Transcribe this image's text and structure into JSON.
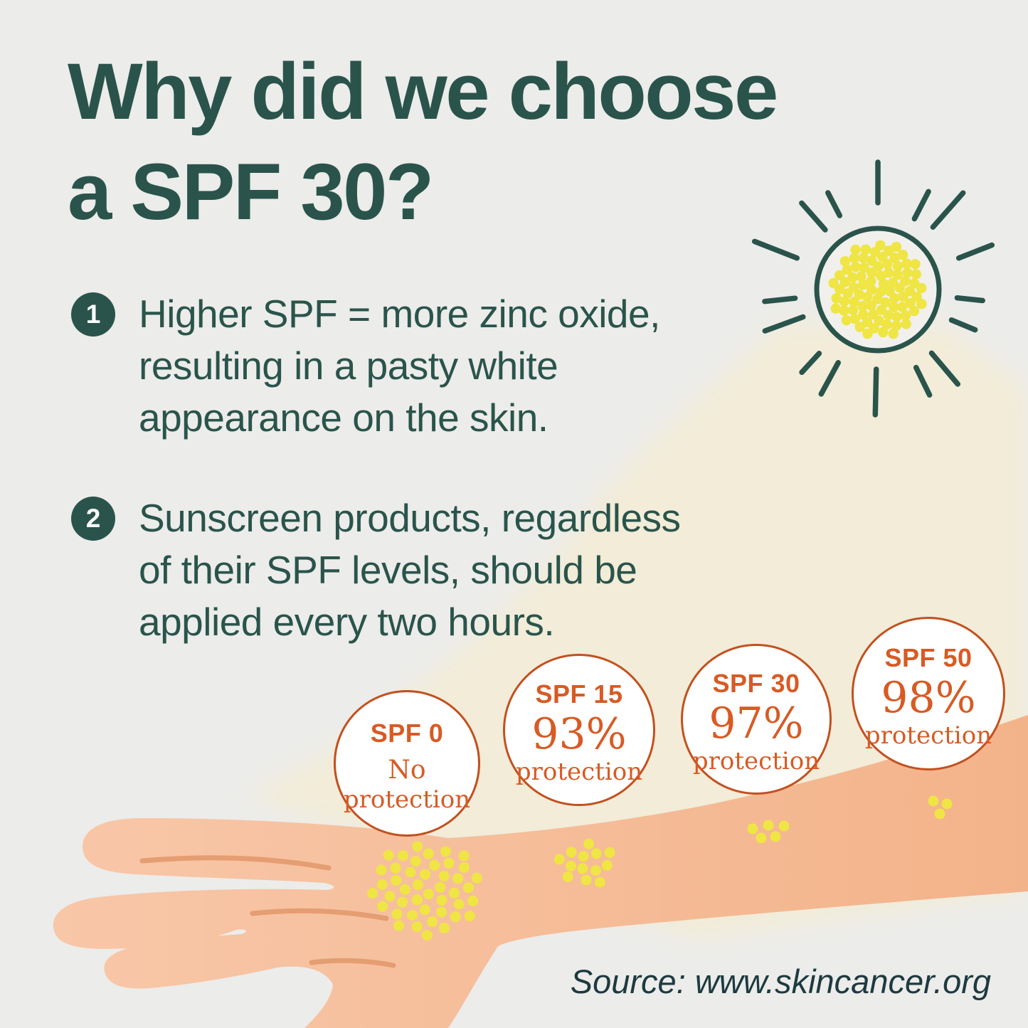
{
  "title": {
    "text": "Why did we choose\na SPF 30?"
  },
  "points": [
    {
      "number": "1",
      "text": "Higher SPF = more zinc oxide,\nresulting in a pasty white\nappearance on the skin."
    },
    {
      "number": "2",
      "text": "Sunscreen products, regardless\nof their SPF levels, should be\napplied every two hours."
    }
  ],
  "spf_levels": [
    {
      "label": "SPF 0",
      "value": "No",
      "sublabel": "protection"
    },
    {
      "label": "SPF 15",
      "value": "93%",
      "sublabel": "protection"
    },
    {
      "label": "SPF 30",
      "value": "97%",
      "sublabel": "protection"
    },
    {
      "label": "SPF 50",
      "value": "98%",
      "sublabel": "protection"
    }
  ],
  "source": {
    "text": "Source: www.skincancer.org"
  },
  "icons": {
    "sun": "sun-icon"
  },
  "colors": {
    "bg": "#ececea",
    "green": "#2a544b",
    "orange": "#d75b24",
    "ring": "#c2511f",
    "beam": "#f2ecd8",
    "skin1": "#f8c7a8",
    "skin2": "#f3b38a",
    "crease": "#e59d72",
    "yellow": "#efe544",
    "sunfill": "#f1f0ed",
    "white": "#ffffff",
    "srccolor": "#1d3a40"
  }
}
